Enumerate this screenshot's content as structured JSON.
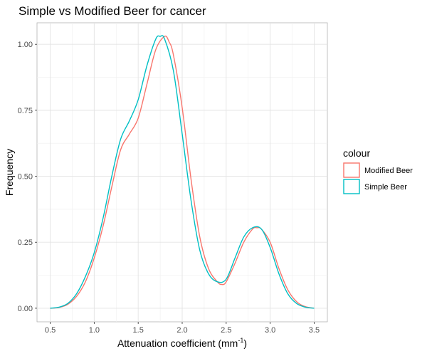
{
  "chart_data": {
    "type": "line",
    "title": "Simple vs Modified Beer for cancer",
    "xlabel": "Attenuation coefficient (mm",
    "xlabel_sup": "-1",
    "xlabel_suffix": ")",
    "ylabel": "Frequency",
    "xlim": [
      0.5,
      3.5
    ],
    "ylim": [
      0,
      1.03
    ],
    "x_ticks": [
      0.5,
      1.0,
      1.5,
      2.0,
      2.5,
      3.0,
      3.5
    ],
    "x_tick_labels": [
      "0.5",
      "1.0",
      "1.5",
      "2.0",
      "2.5",
      "3.0",
      "3.5"
    ],
    "y_ticks": [
      0,
      0.25,
      0.5,
      0.75,
      1.0
    ],
    "y_tick_labels": [
      "0.00",
      "0.25",
      "0.50",
      "0.75",
      "1.00"
    ],
    "grid": true,
    "legend": {
      "title": "colour",
      "position": "right"
    },
    "series": [
      {
        "name": "Modified Beer",
        "color": "#F8766D",
        "x": [
          0.5,
          0.6,
          0.7,
          0.8,
          0.9,
          1.0,
          1.1,
          1.2,
          1.3,
          1.4,
          1.5,
          1.6,
          1.7,
          1.8,
          1.85,
          1.9,
          2.0,
          2.1,
          2.2,
          2.3,
          2.4,
          2.45,
          2.5,
          2.6,
          2.7,
          2.8,
          2.85,
          2.9,
          3.0,
          3.1,
          3.2,
          3.3,
          3.4,
          3.5
        ],
        "y": [
          0.0,
          0.003,
          0.015,
          0.045,
          0.1,
          0.19,
          0.31,
          0.46,
          0.6,
          0.66,
          0.72,
          0.85,
          0.98,
          1.03,
          1.01,
          0.96,
          0.76,
          0.49,
          0.27,
          0.15,
          0.1,
          0.09,
          0.1,
          0.17,
          0.25,
          0.3,
          0.305,
          0.3,
          0.25,
          0.15,
          0.07,
          0.025,
          0.006,
          0.0
        ]
      },
      {
        "name": "Simple Beer",
        "color": "#00BFC4",
        "x": [
          0.5,
          0.6,
          0.7,
          0.8,
          0.9,
          1.0,
          1.1,
          1.2,
          1.3,
          1.4,
          1.5,
          1.6,
          1.7,
          1.75,
          1.8,
          1.9,
          2.0,
          2.1,
          2.2,
          2.3,
          2.4,
          2.5,
          2.6,
          2.7,
          2.8,
          2.9,
          3.0,
          3.1,
          3.2,
          3.3,
          3.4,
          3.5
        ],
        "y": [
          0.0,
          0.004,
          0.018,
          0.055,
          0.12,
          0.21,
          0.34,
          0.5,
          0.64,
          0.71,
          0.79,
          0.92,
          1.02,
          1.03,
          1.02,
          0.9,
          0.66,
          0.41,
          0.22,
          0.13,
          0.1,
          0.11,
          0.19,
          0.27,
          0.305,
          0.3,
          0.23,
          0.13,
          0.055,
          0.018,
          0.004,
          0.0
        ]
      }
    ]
  }
}
